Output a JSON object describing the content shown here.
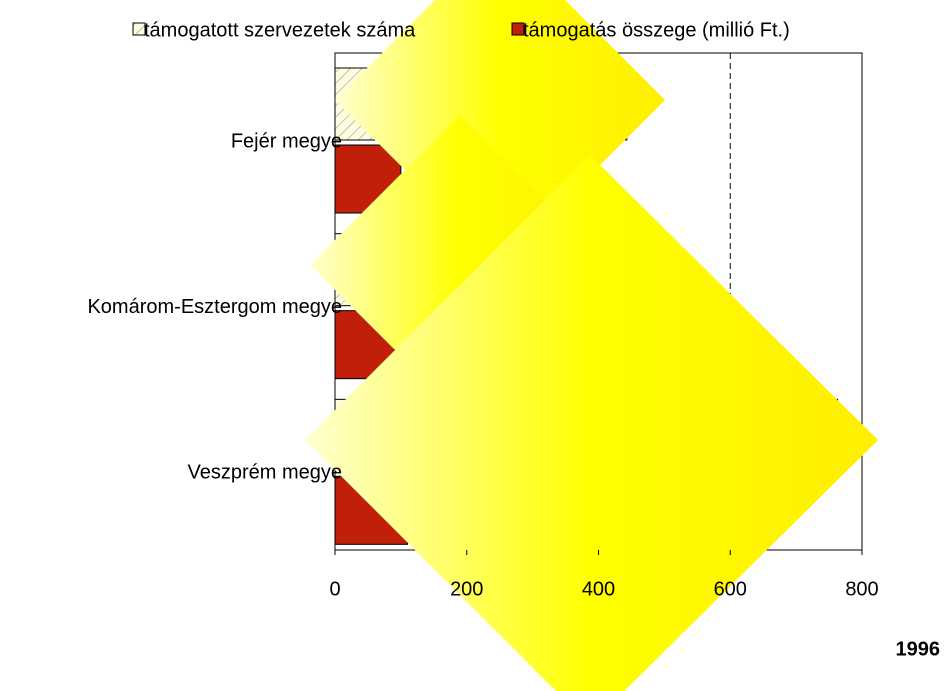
{
  "chart_data": {
    "type": "hbar",
    "title": "1996",
    "categories": [
      "Fejér megye",
      "Komárom-Esztergom megye",
      "Veszprém megye"
    ],
    "series": [
      {
        "name": "támogatott szervezetek száma",
        "color": "#fffde0",
        "pattern": "hatch",
        "values": [
          443,
          300,
          763
        ]
      },
      {
        "name": "támogatás összege (millió Ft.)",
        "color": "#c0200a",
        "values": [
          100,
          90,
          110
        ]
      }
    ],
    "xlim": [
      0,
      800
    ],
    "xticks": [
      0,
      200,
      400,
      600,
      800
    ],
    "vline": 600,
    "legend": "top"
  }
}
